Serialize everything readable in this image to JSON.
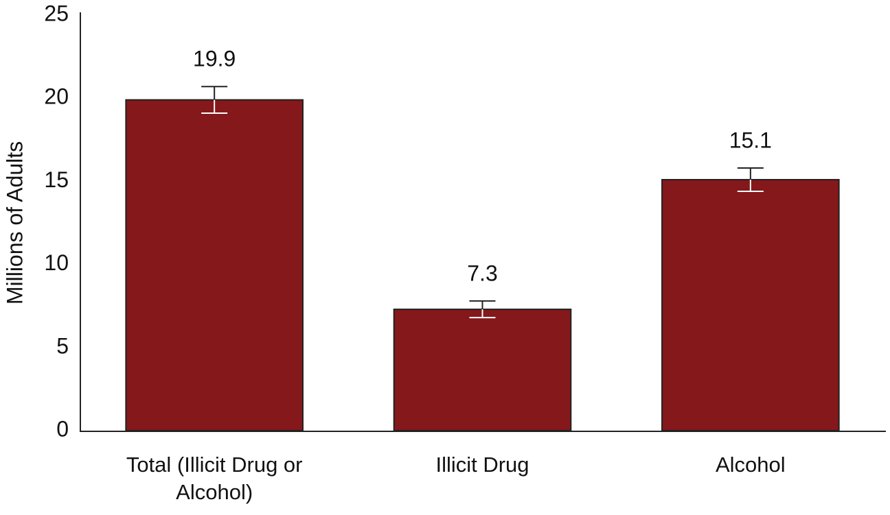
{
  "chart_data": {
    "type": "bar",
    "y_label": "Millions of Adults",
    "categories": [
      "Total (Illicit Drug or Alcohol)",
      "Illicit Drug",
      "Alcohol"
    ],
    "values": [
      19.9,
      7.3,
      15.1
    ],
    "errors": [
      0.8,
      0.5,
      0.7
    ],
    "color": "#84181b",
    "ylim": [
      0,
      25
    ],
    "yticks": [
      0,
      5,
      10,
      15,
      20,
      25
    ],
    "grid": false
  }
}
